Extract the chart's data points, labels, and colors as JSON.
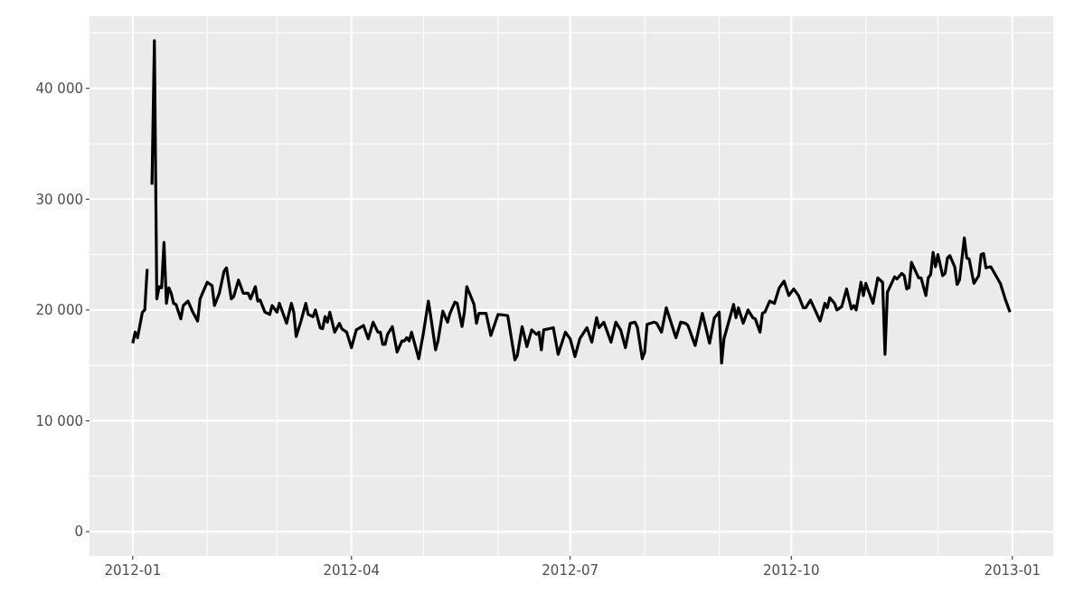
{
  "chart_data": {
    "type": "line",
    "xlim": [
      "2011-12-14",
      "2013-01-18"
    ],
    "ylim": [
      -2200,
      46500
    ],
    "xticks": [
      {
        "value": "2012-01-01",
        "label": "2012-01"
      },
      {
        "value": "2012-02-01",
        "label": null
      },
      {
        "value": "2012-03-01",
        "label": null
      },
      {
        "value": "2012-04-01",
        "label": "2012-04"
      },
      {
        "value": "2012-05-01",
        "label": null
      },
      {
        "value": "2012-06-01",
        "label": null
      },
      {
        "value": "2012-07-01",
        "label": "2012-07"
      },
      {
        "value": "2012-08-01",
        "label": null
      },
      {
        "value": "2012-09-01",
        "label": null
      },
      {
        "value": "2012-10-01",
        "label": "2012-10"
      },
      {
        "value": "2012-11-01",
        "label": null
      },
      {
        "value": "2012-12-01",
        "label": null
      },
      {
        "value": "2013-01-01",
        "label": "2013-01"
      }
    ],
    "yticks": [
      {
        "value": 0,
        "label": "0"
      },
      {
        "value": 5000,
        "label": null
      },
      {
        "value": 10000,
        "label": "10 000"
      },
      {
        "value": 15000,
        "label": null
      },
      {
        "value": 20000,
        "label": "20 000"
      },
      {
        "value": 25000,
        "label": null
      },
      {
        "value": 30000,
        "label": "30 000"
      },
      {
        "value": 35000,
        "label": null
      },
      {
        "value": 40000,
        "label": "40 000"
      },
      {
        "value": 45000,
        "label": null
      }
    ],
    "grid": true,
    "marker": "none",
    "line_style": "solid",
    "series": [
      {
        "color": "#000000",
        "x": [
          "2012-01-01",
          "2012-01-02",
          "2012-01-03",
          "2012-01-05",
          "2012-01-06",
          "2012-01-07",
          "2012-01-08",
          "2012-01-09",
          "2012-01-10",
          "2012-01-11",
          "2012-01-12",
          "2012-01-13",
          "2012-01-14",
          "2012-01-15",
          "2012-01-16",
          "2012-01-17",
          "2012-01-18",
          "2012-01-19",
          "2012-01-21",
          "2012-01-22",
          "2012-01-24",
          "2012-01-26",
          "2012-01-28",
          "2012-01-29",
          "2012-02-01",
          "2012-02-03",
          "2012-02-04",
          "2012-02-06",
          "2012-02-08",
          "2012-02-09",
          "2012-02-11",
          "2012-02-12",
          "2012-02-14",
          "2012-02-16",
          "2012-02-18",
          "2012-02-19",
          "2012-02-21",
          "2012-02-22",
          "2012-02-23",
          "2012-02-25",
          "2012-02-27",
          "2012-02-28",
          "2012-03-01",
          "2012-03-02",
          "2012-03-05",
          "2012-03-07",
          "2012-03-08",
          "2012-03-09",
          "2012-03-11",
          "2012-03-13",
          "2012-03-14",
          "2012-03-16",
          "2012-03-17",
          "2012-03-19",
          "2012-03-20",
          "2012-03-21",
          "2012-03-22",
          "2012-03-23",
          "2012-03-25",
          "2012-03-27",
          "2012-03-28",
          "2012-03-30",
          "2012-04-01",
          "2012-04-03",
          "2012-04-06",
          "2012-04-08",
          "2012-04-10",
          "2012-04-12",
          "2012-04-13",
          "2012-04-14",
          "2012-04-15",
          "2012-04-16",
          "2012-04-18",
          "2012-04-20",
          "2012-04-22",
          "2012-04-23",
          "2012-04-24",
          "2012-04-25",
          "2012-04-26",
          "2012-04-29",
          "2012-05-01",
          "2012-05-03",
          "2012-05-04",
          "2012-05-06",
          "2012-05-07",
          "2012-05-09",
          "2012-05-11",
          "2012-05-12",
          "2012-05-14",
          "2012-05-15",
          "2012-05-17",
          "2012-05-18",
          "2012-05-19",
          "2012-05-22",
          "2012-05-23",
          "2012-05-24",
          "2012-05-27",
          "2012-05-29",
          "2012-06-01",
          "2012-06-05",
          "2012-06-08",
          "2012-06-09",
          "2012-06-11",
          "2012-06-13",
          "2012-06-15",
          "2012-06-17",
          "2012-06-18",
          "2012-06-19",
          "2012-06-20",
          "2012-06-24",
          "2012-06-26",
          "2012-06-29",
          "2012-07-01",
          "2012-07-03",
          "2012-07-05",
          "2012-07-08",
          "2012-07-10",
          "2012-07-12",
          "2012-07-13",
          "2012-07-15",
          "2012-07-18",
          "2012-07-20",
          "2012-07-22",
          "2012-07-24",
          "2012-07-26",
          "2012-07-28",
          "2012-07-29",
          "2012-07-31",
          "2012-08-01",
          "2012-08-02",
          "2012-08-05",
          "2012-08-06",
          "2012-08-08",
          "2012-08-10",
          "2012-08-14",
          "2012-08-16",
          "2012-08-18",
          "2012-08-19",
          "2012-08-22",
          "2012-08-25",
          "2012-08-28",
          "2012-08-30",
          "2012-09-01",
          "2012-09-02",
          "2012-09-03",
          "2012-09-07",
          "2012-09-08",
          "2012-09-09",
          "2012-09-11",
          "2012-09-13",
          "2012-09-15",
          "2012-09-16",
          "2012-09-18",
          "2012-09-19",
          "2012-09-20",
          "2012-09-22",
          "2012-09-24",
          "2012-09-26",
          "2012-09-28",
          "2012-09-30",
          "2012-10-02",
          "2012-10-04",
          "2012-10-06",
          "2012-10-07",
          "2012-10-09",
          "2012-10-13",
          "2012-10-15",
          "2012-10-16",
          "2012-10-17",
          "2012-10-19",
          "2012-10-20",
          "2012-10-22",
          "2012-10-24",
          "2012-10-26",
          "2012-10-27",
          "2012-10-28",
          "2012-10-30",
          "2012-10-31",
          "2012-11-01",
          "2012-11-04",
          "2012-11-06",
          "2012-11-08",
          "2012-11-09",
          "2012-11-10",
          "2012-11-13",
          "2012-11-14",
          "2012-11-16",
          "2012-11-17",
          "2012-11-18",
          "2012-11-19",
          "2012-11-20",
          "2012-11-23",
          "2012-11-24",
          "2012-11-26",
          "2012-11-27",
          "2012-11-28",
          "2012-11-29",
          "2012-11-30",
          "2012-12-01",
          "2012-12-03",
          "2012-12-04",
          "2012-12-05",
          "2012-12-06",
          "2012-12-08",
          "2012-12-09",
          "2012-12-10",
          "2012-12-12",
          "2012-12-13",
          "2012-12-14",
          "2012-12-16",
          "2012-12-18",
          "2012-12-19",
          "2012-12-20",
          "2012-12-21",
          "2012-12-23",
          "2012-12-27",
          "2012-12-29",
          "2012-12-31"
        ],
        "values": [
          17000,
          18000,
          17500,
          19800,
          20000,
          23700,
          null,
          31300,
          44300,
          21000,
          22100,
          22000,
          26100,
          20600,
          22000,
          21500,
          20600,
          20500,
          19200,
          20400,
          20800,
          19800,
          19000,
          21000,
          22500,
          22200,
          20400,
          21500,
          23500,
          23800,
          21000,
          21200,
          22700,
          21500,
          21500,
          21000,
          22100,
          20800,
          20900,
          19800,
          19600,
          20400,
          19800,
          20600,
          18800,
          20600,
          19800,
          17600,
          19000,
          20600,
          19600,
          19400,
          20000,
          18400,
          18300,
          19400,
          18900,
          19800,
          18000,
          18800,
          18300,
          18000,
          16600,
          18200,
          18600,
          17400,
          18900,
          18000,
          18000,
          16900,
          16900,
          17800,
          18500,
          16200,
          17200,
          17200,
          17500,
          17200,
          18000,
          15600,
          18000,
          20800,
          19400,
          16400,
          17200,
          19900,
          18900,
          19700,
          20700,
          20600,
          18500,
          19800,
          22100,
          20500,
          18800,
          19700,
          19700,
          17700,
          19600,
          19500,
          15500,
          15900,
          18500,
          16700,
          18200,
          17800,
          18000,
          16400,
          18200,
          18400,
          16000,
          18000,
          17400,
          15800,
          17400,
          18400,
          17100,
          19300,
          18400,
          18900,
          17100,
          18900,
          18200,
          16600,
          18800,
          18900,
          18400,
          15600,
          16200,
          18700,
          18900,
          18800,
          18000,
          20200,
          17500,
          18900,
          18800,
          18600,
          16800,
          19700,
          17000,
          19300,
          19800,
          15200,
          17400,
          20500,
          19300,
          20200,
          18800,
          20000,
          19300,
          19200,
          18000,
          19700,
          19800,
          20800,
          20600,
          22000,
          22600,
          21300,
          21900,
          21300,
          20200,
          20200,
          20900,
          19000,
          20600,
          20200,
          21100,
          20600,
          20000,
          20300,
          21900,
          20100,
          20400,
          20000,
          22500,
          21300,
          22400,
          20600,
          22900,
          22500,
          16000,
          21600,
          23000,
          22800,
          23300,
          23100,
          21900,
          22000,
          24300,
          22900,
          22900,
          21300,
          22900,
          23200,
          25200,
          23900,
          25000,
          23100,
          23300,
          24700,
          24900,
          23900,
          22300,
          22700,
          26500,
          24700,
          24600,
          22400,
          23100,
          25000,
          25100,
          23800,
          23900,
          22400,
          21000,
          19800
        ]
      }
    ]
  }
}
